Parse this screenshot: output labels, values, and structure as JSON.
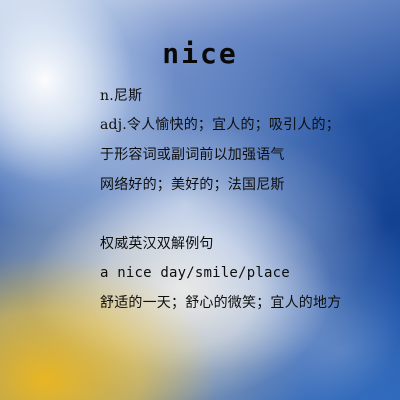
{
  "card": {
    "headword": "nice",
    "lines": [
      "n.尼斯",
      "adj.令人愉快的；宜人的；吸引人的；",
      "于形容词或副词前以加强语气",
      "网络好的；美好的；法国尼斯",
      "权威英汉双解例句",
      "a nice day/smile/place",
      "舒适的一天；舒心的微笑；宜人的地方"
    ]
  }
}
